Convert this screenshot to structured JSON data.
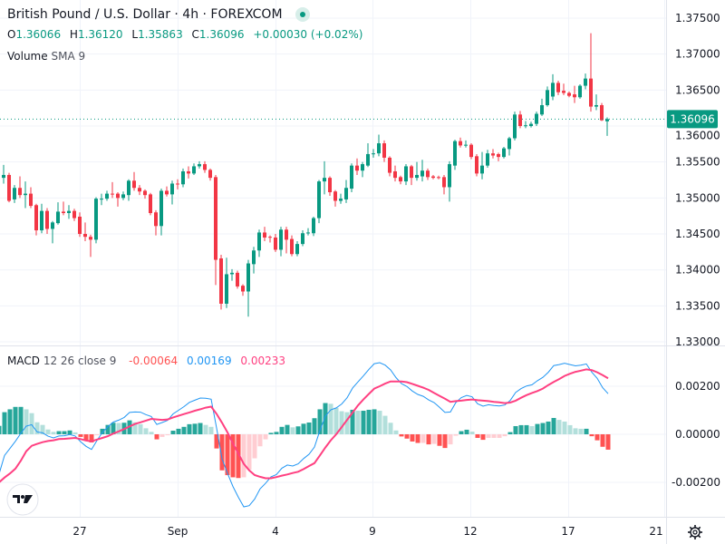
{
  "header": {
    "title": "British Pound / U.S. Dollar · 4h · FOREXCOM",
    "status": "market-open-dot",
    "ohlc": {
      "o_label": "O",
      "o": "1.36066",
      "h_label": "H",
      "h": "1.36120",
      "l_label": "L",
      "l": "1.35863",
      "c_label": "C",
      "c": "1.36096",
      "change": "+0.00030 (+0.02%)"
    },
    "volume_label": "Volume",
    "volume_sub": "SMA 9"
  },
  "macd_legend": {
    "label": "MACD",
    "params": "12 26 close 9",
    "histogram": "-0.00064",
    "macd": "0.00169",
    "signal": "0.00233"
  },
  "price_axis": {
    "labels": [
      "1.37500",
      "1.37000",
      "1.36500",
      "1.36000",
      "1.35500",
      "1.35000",
      "1.34500",
      "1.34000",
      "1.33500",
      "1.33000"
    ],
    "last_price": "1.36096"
  },
  "macd_axis": {
    "labels": [
      "0.00200",
      "0.00000",
      "-0.00200"
    ]
  },
  "time_axis": {
    "labels": [
      "27",
      "Sep",
      "4",
      "9",
      "12",
      "17",
      "21"
    ]
  },
  "icons": {
    "settings": "gear-icon",
    "logo": "tradingview-logo"
  },
  "colors": {
    "up": "#089981",
    "down": "#F23645",
    "macd": "#2196F3",
    "signal": "#FF4081",
    "hist_up_rising": "#26A69A",
    "hist_up_falling": "#B2DFDB",
    "hist_down_falling": "#FF5252",
    "hist_down_rising": "#FFCDD2"
  },
  "chart_data": [
    {
      "type": "candlestick",
      "symbol": "GBPUSD",
      "interval": "4h",
      "ylim": [
        1.33,
        1.375
      ],
      "grid": true,
      "ohlc": [
        [
          1.3414,
          1.3535,
          1.3405,
          1.3528
        ],
        [
          1.3528,
          1.3546,
          1.352,
          1.3532
        ],
        [
          1.3532,
          1.3535,
          1.3494,
          1.3496
        ],
        [
          1.3498,
          1.3518,
          1.3493,
          1.3514
        ],
        [
          1.3514,
          1.353,
          1.35,
          1.3504
        ],
        [
          1.3504,
          1.3523,
          1.3486,
          1.3506
        ],
        [
          1.3506,
          1.3515,
          1.3486,
          1.3489
        ],
        [
          1.349,
          1.3492,
          1.3448,
          1.3455
        ],
        [
          1.3455,
          1.3492,
          1.3451,
          1.3482
        ],
        [
          1.3482,
          1.3486,
          1.345,
          1.3457
        ],
        [
          1.3457,
          1.3468,
          1.3437,
          1.3466
        ],
        [
          1.3465,
          1.3494,
          1.3463,
          1.3481
        ],
        [
          1.3481,
          1.3495,
          1.3476,
          1.3479
        ],
        [
          1.3479,
          1.349,
          1.3471,
          1.3482
        ],
        [
          1.3482,
          1.3485,
          1.3468,
          1.3472
        ],
        [
          1.3474,
          1.348,
          1.3446,
          1.345
        ],
        [
          1.345,
          1.3466,
          1.344,
          1.3446
        ],
        [
          1.3446,
          1.3449,
          1.3418,
          1.3442
        ],
        [
          1.3442,
          1.3501,
          1.3437,
          1.3499
        ],
        [
          1.3498,
          1.3506,
          1.349,
          1.3499
        ],
        [
          1.3499,
          1.351,
          1.3496,
          1.3506
        ],
        [
          1.3506,
          1.3522,
          1.35,
          1.3505
        ],
        [
          1.3506,
          1.3508,
          1.3488,
          1.35
        ],
        [
          1.35,
          1.3509,
          1.3497,
          1.3505
        ],
        [
          1.3504,
          1.3526,
          1.3496,
          1.3524
        ],
        [
          1.3524,
          1.3536,
          1.351,
          1.3514
        ],
        [
          1.3514,
          1.3518,
          1.3504,
          1.3509
        ],
        [
          1.351,
          1.3512,
          1.3499,
          1.3504
        ],
        [
          1.3505,
          1.3507,
          1.3476,
          1.3479
        ],
        [
          1.348,
          1.3483,
          1.3448,
          1.3461
        ],
        [
          1.3461,
          1.3513,
          1.3448,
          1.351
        ],
        [
          1.351,
          1.3516,
          1.3502,
          1.3505
        ],
        [
          1.3505,
          1.3524,
          1.3491,
          1.352
        ],
        [
          1.352,
          1.3526,
          1.3512,
          1.3519
        ],
        [
          1.3519,
          1.3541,
          1.3515,
          1.3537
        ],
        [
          1.3537,
          1.3544,
          1.3527,
          1.3534
        ],
        [
          1.3534,
          1.3548,
          1.3532,
          1.3544
        ],
        [
          1.3544,
          1.3551,
          1.3541,
          1.3547
        ],
        [
          1.3547,
          1.3551,
          1.3535,
          1.3539
        ],
        [
          1.3539,
          1.3541,
          1.3524,
          1.3528
        ],
        [
          1.3529,
          1.3532,
          1.3379,
          1.3414
        ],
        [
          1.3416,
          1.3421,
          1.3345,
          1.3353
        ],
        [
          1.3353,
          1.3417,
          1.3347,
          1.3394
        ],
        [
          1.3394,
          1.3401,
          1.3385,
          1.3396
        ],
        [
          1.3396,
          1.3399,
          1.3374,
          1.3377
        ],
        [
          1.3378,
          1.338,
          1.3364,
          1.337
        ],
        [
          1.337,
          1.3414,
          1.3335,
          1.3409
        ],
        [
          1.3408,
          1.3432,
          1.3395,
          1.3427
        ],
        [
          1.3427,
          1.3456,
          1.3418,
          1.3452
        ],
        [
          1.3452,
          1.346,
          1.344,
          1.3445
        ],
        [
          1.3446,
          1.3448,
          1.3438,
          1.3445
        ],
        [
          1.3445,
          1.345,
          1.3425,
          1.3428
        ],
        [
          1.3428,
          1.346,
          1.3419,
          1.3456
        ],
        [
          1.3456,
          1.346,
          1.3423,
          1.3442
        ],
        [
          1.3443,
          1.3448,
          1.3419,
          1.3422
        ],
        [
          1.3422,
          1.344,
          1.3419,
          1.3436
        ],
        [
          1.3436,
          1.3455,
          1.3433,
          1.3451
        ],
        [
          1.3451,
          1.3458,
          1.3448,
          1.3452
        ],
        [
          1.3451,
          1.3474,
          1.3447,
          1.3472
        ],
        [
          1.3472,
          1.3525,
          1.3465,
          1.3523
        ],
        [
          1.3523,
          1.3551,
          1.3505,
          1.3528
        ],
        [
          1.3528,
          1.353,
          1.3503,
          1.3508
        ],
        [
          1.3509,
          1.3511,
          1.3488,
          1.3496
        ],
        [
          1.3496,
          1.3506,
          1.3492,
          1.3499
        ],
        [
          1.3498,
          1.3525,
          1.3493,
          1.3514
        ],
        [
          1.3513,
          1.3548,
          1.3508,
          1.3545
        ],
        [
          1.3545,
          1.3555,
          1.3532,
          1.3538
        ],
        [
          1.3538,
          1.355,
          1.3529,
          1.3547
        ],
        [
          1.3545,
          1.3576,
          1.3543,
          1.3561
        ],
        [
          1.3561,
          1.3568,
          1.3556,
          1.3562
        ],
        [
          1.3562,
          1.3588,
          1.3558,
          1.3576
        ],
        [
          1.3576,
          1.358,
          1.355,
          1.3556
        ],
        [
          1.3556,
          1.3558,
          1.353,
          1.3535
        ],
        [
          1.3537,
          1.3545,
          1.3523,
          1.3528
        ],
        [
          1.3529,
          1.3531,
          1.3519,
          1.3523
        ],
        [
          1.3523,
          1.3547,
          1.3518,
          1.3544
        ],
        [
          1.3544,
          1.3546,
          1.3518,
          1.3528
        ],
        [
          1.3528,
          1.355,
          1.3524,
          1.3532
        ],
        [
          1.353,
          1.3553,
          1.3523,
          1.3538
        ],
        [
          1.3538,
          1.3541,
          1.3525,
          1.3529
        ],
        [
          1.353,
          1.3532,
          1.3526,
          1.3528
        ],
        [
          1.3529,
          1.3531,
          1.3526,
          1.3528
        ],
        [
          1.3529,
          1.3532,
          1.3505,
          1.3515
        ],
        [
          1.3515,
          1.3551,
          1.3495,
          1.3547
        ],
        [
          1.3545,
          1.3581,
          1.3539,
          1.3579
        ],
        [
          1.3579,
          1.3584,
          1.357,
          1.3573
        ],
        [
          1.3573,
          1.358,
          1.357,
          1.3574
        ],
        [
          1.3574,
          1.3576,
          1.3554,
          1.3557
        ],
        [
          1.3558,
          1.3561,
          1.353,
          1.3534
        ],
        [
          1.3534,
          1.3564,
          1.3526,
          1.3545
        ],
        [
          1.3545,
          1.3567,
          1.3542,
          1.3562
        ],
        [
          1.3562,
          1.3568,
          1.3555,
          1.3559
        ],
        [
          1.3561,
          1.3563,
          1.3551,
          1.3557
        ],
        [
          1.3557,
          1.3571,
          1.3555,
          1.3569
        ],
        [
          1.3568,
          1.3585,
          1.3559,
          1.3583
        ],
        [
          1.3583,
          1.362,
          1.358,
          1.3616
        ],
        [
          1.3616,
          1.3621,
          1.3597,
          1.36
        ],
        [
          1.36,
          1.3607,
          1.3597,
          1.3601
        ],
        [
          1.36,
          1.3606,
          1.3598,
          1.3603
        ],
        [
          1.3603,
          1.362,
          1.36,
          1.3617
        ],
        [
          1.3616,
          1.3638,
          1.3614,
          1.3629
        ],
        [
          1.3629,
          1.3655,
          1.3627,
          1.365
        ],
        [
          1.3641,
          1.3672,
          1.3636,
          1.366
        ],
        [
          1.366,
          1.3663,
          1.3643,
          1.3647
        ],
        [
          1.3649,
          1.3659,
          1.3643,
          1.3646
        ],
        [
          1.3646,
          1.3648,
          1.364,
          1.3642
        ],
        [
          1.3644,
          1.3656,
          1.3632,
          1.364
        ],
        [
          1.364,
          1.3658,
          1.3638,
          1.3656
        ],
        [
          1.3656,
          1.3673,
          1.3651,
          1.3666
        ],
        [
          1.3666,
          1.3729,
          1.362,
          1.3627
        ],
        [
          1.3627,
          1.3644,
          1.3622,
          1.3629
        ],
        [
          1.3629,
          1.3632,
          1.3607,
          1.3608
        ],
        [
          1.36066,
          1.3612,
          1.35863,
          1.36096
        ]
      ]
    },
    {
      "type": "macd",
      "params": [
        12,
        26,
        9
      ],
      "ylim": [
        -0.0033,
        0.0037
      ],
      "histogram": [
        0.00035,
        0.00092,
        0.00104,
        0.00114,
        0.00114,
        0.00104,
        0.00088,
        0.0005,
        0.00039,
        0.0002,
        0.0001,
        0.00013,
        0.00013,
        0.00016,
        8e-05,
        -0.00011,
        -0.00024,
        -0.00034,
        -4e-05,
        0.00023,
        0.00039,
        0.00048,
        0.00047,
        0.00048,
        0.00058,
        0.0005,
        0.00042,
        0.00025,
        0.0001,
        -0.00021,
        -0.00011,
        -4e-05,
        0.00015,
        0.00023,
        0.00031,
        0.00042,
        0.00044,
        0.00047,
        0.00039,
        0.00031,
        -0.00059,
        -0.0015,
        -0.0017,
        -0.00179,
        -0.00182,
        -0.00179,
        -0.00147,
        -0.001,
        -0.0005,
        -0.00021,
        6e-05,
        0.0001,
        0.00031,
        0.00039,
        0.00029,
        0.00033,
        0.00044,
        0.00049,
        0.00067,
        0.00104,
        0.0013,
        0.00127,
        0.0011,
        0.00096,
        0.00092,
        0.00102,
        0.00098,
        0.00098,
        0.00102,
        0.00104,
        0.00098,
        0.00077,
        0.00048,
        0.00016,
        -9e-05,
        -0.00018,
        -0.0003,
        -0.00036,
        -0.00036,
        -0.00042,
        -0.0004,
        -0.00048,
        -0.00057,
        -0.00042,
        -6e-05,
        0.00013,
        0.00019,
        0.00011,
        -0.00015,
        -0.00023,
        -0.00015,
        -0.00015,
        -0.00015,
        -8e-05,
        9e-05,
        0.00034,
        0.00038,
        0.00038,
        0.00034,
        0.00043,
        0.00047,
        0.00053,
        0.00068,
        0.0006,
        0.00053,
        0.00038,
        0.00025,
        0.00023,
        0.00023,
        -8e-05,
        -0.00025,
        -0.00052,
        -0.00064
      ],
      "signal": [
        -0.002,
        -0.0018,
        -0.00163,
        -0.00143,
        -0.0011,
        -0.0007,
        -0.00048,
        -0.0004,
        -0.00033,
        -0.00028,
        -0.00025,
        -0.0002,
        -0.00019,
        -0.00017,
        -0.00015,
        -0.0002,
        -0.00026,
        -0.00029,
        -0.00022,
        -0.00015,
        -8e-05,
        3e-05,
        0.00012,
        0.00022,
        0.00033,
        0.00043,
        0.0005,
        0.00057,
        0.00064,
        0.00062,
        0.0006,
        0.00062,
        0.0007,
        0.00077,
        0.00084,
        0.00091,
        0.00098,
        0.00104,
        0.00111,
        0.00115,
        0.00085,
        0.00048,
        8e-05,
        -0.00038,
        -0.0008,
        -0.00123,
        -0.0015,
        -0.0017,
        -0.00177,
        -0.00183,
        -0.00183,
        -0.00178,
        -0.00172,
        -0.00167,
        -0.00161,
        -0.00156,
        -0.00145,
        -0.00132,
        -0.0012,
        -0.00088,
        -0.00055,
        -0.00025,
        0.0,
        0.0003,
        0.0006,
        0.0009,
        0.0012,
        0.00145,
        0.00168,
        0.0019,
        0.002,
        0.00211,
        0.0022,
        0.0022,
        0.0022,
        0.00217,
        0.0021,
        0.00202,
        0.00194,
        0.00185,
        0.00172,
        0.0016,
        0.00148,
        0.00135,
        0.00138,
        0.0014,
        0.00143,
        0.00145,
        0.00142,
        0.0014,
        0.00138,
        0.00135,
        0.00133,
        0.0013,
        0.00132,
        0.0014,
        0.00152,
        0.00163,
        0.00172,
        0.0018,
        0.0019,
        0.00205,
        0.00218,
        0.0023,
        0.00243,
        0.00252,
        0.0026,
        0.00265,
        0.0027,
        0.00267,
        0.00258,
        0.00246,
        0.00233
      ]
    }
  ]
}
